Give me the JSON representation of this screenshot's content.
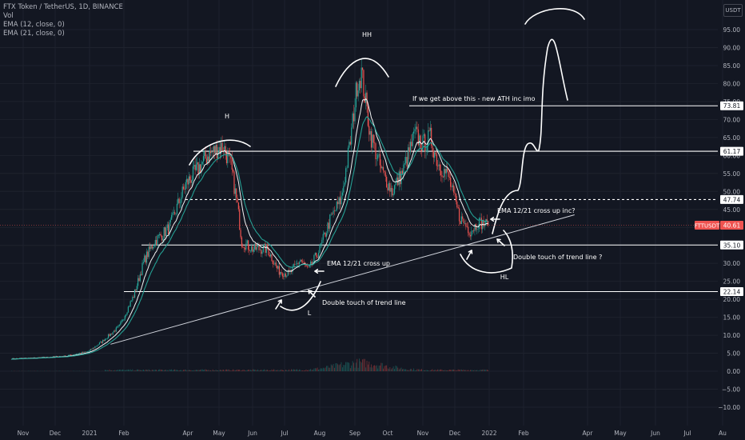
{
  "legend": {
    "title": "FTX Token / TetherUS, 1D, BINANCE",
    "vol": "Vol",
    "ema12": "EMA (12, close, 0)",
    "ema21": "EMA (21, close, 0)"
  },
  "currency_button": "USDT",
  "colors": {
    "background": "#131722",
    "grid": "#1e222d",
    "axis_text": "#b2b5be",
    "candle_up": "#26a69a",
    "candle_down": "#ef5350",
    "ema12": "#ffffff",
    "ema21": "#26a69a",
    "drawing": "#ffffff",
    "price_tag": "#ef5350"
  },
  "chart_data": {
    "type": "candlestick",
    "symbol": "FTTUSDT",
    "ylim": [
      -12,
      102
    ],
    "y_ticks": [
      95,
      90,
      85,
      80,
      75,
      70,
      65,
      60,
      55,
      50,
      45,
      40,
      35,
      30,
      25,
      20,
      15,
      10,
      5,
      0,
      -5,
      -10
    ],
    "x_tick_labels": [
      "Nov",
      "Dec",
      "2021",
      "Feb",
      "Apr",
      "May",
      "Jun",
      "Jul",
      "Aug",
      "Sep",
      "Oct",
      "Nov",
      "Dec",
      "2022",
      "Feb",
      "Apr",
      "May",
      "Jun",
      "Jul",
      "Au"
    ],
    "x_tick_dates": [
      "2020-11-01",
      "2020-12-01",
      "2021-01-01",
      "2021-02-01",
      "2021-04-01",
      "2021-05-01",
      "2021-06-01",
      "2021-07-01",
      "2021-08-01",
      "2021-09-01",
      "2021-10-01",
      "2021-11-01",
      "2021-12-01",
      "2022-01-01",
      "2022-02-01",
      "2022-04-01",
      "2022-05-01",
      "2022-06-01",
      "2022-07-01",
      "2022-08-01"
    ],
    "price_path": {
      "dates": [
        "2020-10-22",
        "2020-11-15",
        "2020-12-10",
        "2020-12-31",
        "2021-01-12",
        "2021-01-28",
        "2021-02-10",
        "2021-02-20",
        "2021-03-01",
        "2021-03-15",
        "2021-03-30",
        "2021-04-10",
        "2021-04-20",
        "2021-04-30",
        "2021-05-05",
        "2021-05-12",
        "2021-05-18",
        "2021-05-22",
        "2021-06-01",
        "2021-06-15",
        "2021-06-25",
        "2021-07-05",
        "2021-07-15",
        "2021-07-22",
        "2021-08-01",
        "2021-08-10",
        "2021-08-20",
        "2021-08-28",
        "2021-09-03",
        "2021-09-07",
        "2021-09-15",
        "2021-09-25",
        "2021-10-05",
        "2021-10-15",
        "2021-10-25",
        "2021-11-01",
        "2021-11-08",
        "2021-11-15",
        "2021-11-25",
        "2021-12-05",
        "2021-12-15",
        "2021-12-22",
        "2021-12-31"
      ],
      "values": [
        3.5,
        3.7,
        4.2,
        5.5,
        8.2,
        12.5,
        21,
        31,
        36,
        40,
        52,
        56,
        60,
        62,
        62.5,
        57,
        46,
        36,
        34,
        34,
        28,
        27,
        31,
        28,
        34,
        42,
        48,
        64,
        80,
        83,
        66,
        56,
        50,
        56,
        66,
        63,
        65,
        58,
        54,
        43,
        39,
        41.5,
        40.6
      ]
    },
    "volume": {
      "baseline": 0,
      "max_value": 4.1,
      "peak_date": "2021-09-07"
    },
    "ema_lines": [
      {
        "name": "EMA (12, close, 0)",
        "period": 12,
        "color": "#ffffff"
      },
      {
        "name": "EMA (21, close, 0)",
        "period": 21,
        "color": "#26a69a"
      }
    ],
    "horizontal_levels": [
      {
        "value": 73.81,
        "label": "73.81",
        "style": "solid"
      },
      {
        "value": 61.17,
        "label": "61.17",
        "style": "solid"
      },
      {
        "value": 47.74,
        "label": "47.74",
        "style": "dashed"
      },
      {
        "value": 35.1,
        "label": "35.10",
        "style": "solid"
      },
      {
        "value": 22.14,
        "label": "22.14",
        "style": "solid"
      }
    ],
    "last_price": {
      "label": "FTTUSDT",
      "value": "40.61"
    },
    "trend_line": {
      "start": [
        "2021-01-20",
        7.5
      ],
      "end": [
        "2022-03-20",
        43.5
      ]
    },
    "annotations": {
      "h": "H",
      "hh": "HH",
      "l": "L",
      "hl": "HL",
      "ath": "If we get above this - new ATH inc imo",
      "ema_cross_up": "EMA 12/21 cross up",
      "ema_cross_inc": "EMA 12/21 cross up inc?",
      "double_touch": "Double touch of trend line",
      "double_touch_q": "Double touch of trend line ?"
    }
  }
}
